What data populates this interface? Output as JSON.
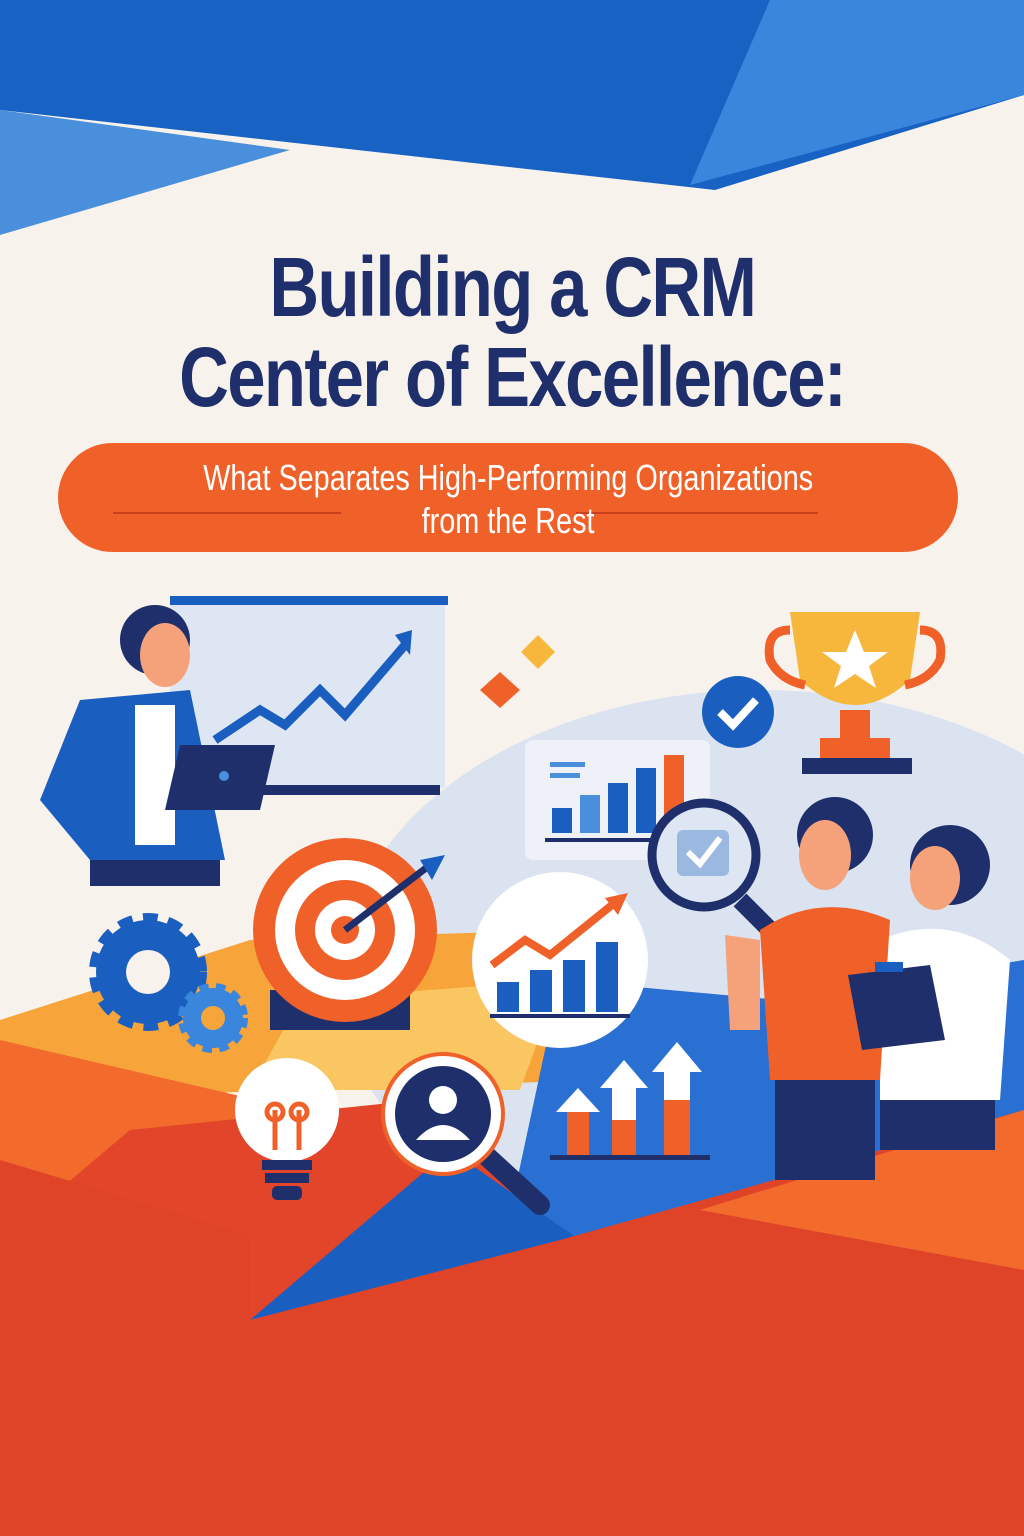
{
  "title": {
    "line1": "Building a CRM",
    "line2": "Center of Excellence:"
  },
  "subtitle": {
    "line1": "What Separates High-Performing Organizations",
    "line2": "from the Rest"
  },
  "colors": {
    "background": "#f8f2ed",
    "title": "#1f2f6b",
    "accent_orange": "#f0612a",
    "primary_blue": "#1a5fc0",
    "red": "#e04428",
    "gold": "#f6b73c"
  },
  "icons": [
    "presenter-woman",
    "line-chart-board",
    "laptop",
    "sparkle",
    "checkmark-badge",
    "trophy",
    "bar-chart-card",
    "magnifier-check",
    "target-arrow",
    "gears",
    "growth-chart-circle",
    "lightbulb",
    "user-magnifier",
    "up-arrows-bars",
    "team-people",
    "clipboard"
  ]
}
